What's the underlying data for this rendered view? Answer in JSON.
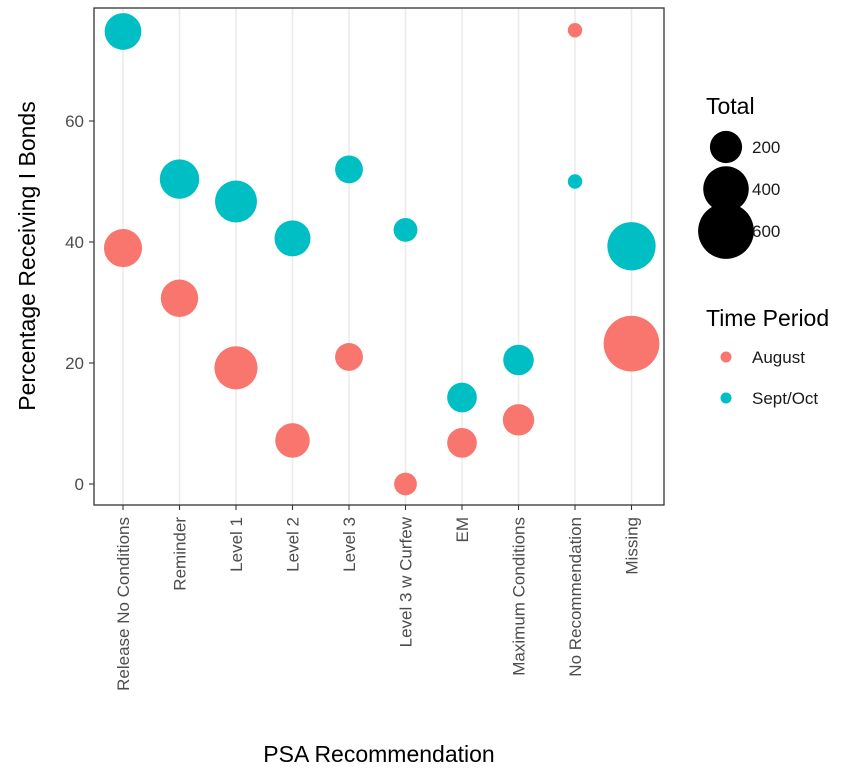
{
  "chart_data": {
    "type": "scatter",
    "xlabel": "PSA Recommendation",
    "ylabel": "Percentage Receiving I Bonds",
    "categories": [
      "Release No Conditions",
      "Reminder",
      "Level 1",
      "Level 2",
      "Level 3",
      "Level 3 w Curfew",
      "EM",
      "Maximum Conditions",
      "No Recommendation",
      "Missing"
    ],
    "yticks": [
      0,
      20,
      40,
      60
    ],
    "ylim": [
      -3.7,
      79
    ],
    "grid": true,
    "legend_position": "right",
    "series": [
      {
        "name": "August",
        "color": "#F8766D",
        "values": [
          39,
          30.7,
          19.2,
          7.2,
          21,
          0,
          6.8,
          10.6,
          75,
          23.2
        ],
        "totals": [
          280,
          270,
          360,
          230,
          150,
          100,
          170,
          190,
          40,
          600
        ]
      },
      {
        "name": "Sept/Oct",
        "color": "#00BFC4",
        "values": [
          74.8,
          50.4,
          46.7,
          40.6,
          52,
          42,
          14.3,
          20.5,
          50,
          39.3
        ],
        "totals": [
          260,
          300,
          340,
          250,
          150,
          110,
          170,
          180,
          40,
          450
        ]
      }
    ],
    "size_legend": {
      "title": "Total",
      "values": [
        200,
        400,
        600
      ],
      "labels": [
        "200",
        "400",
        "600"
      ]
    },
    "color_legend": {
      "title": "Time Period",
      "labels": [
        "August",
        "Sept/Oct"
      ]
    }
  }
}
